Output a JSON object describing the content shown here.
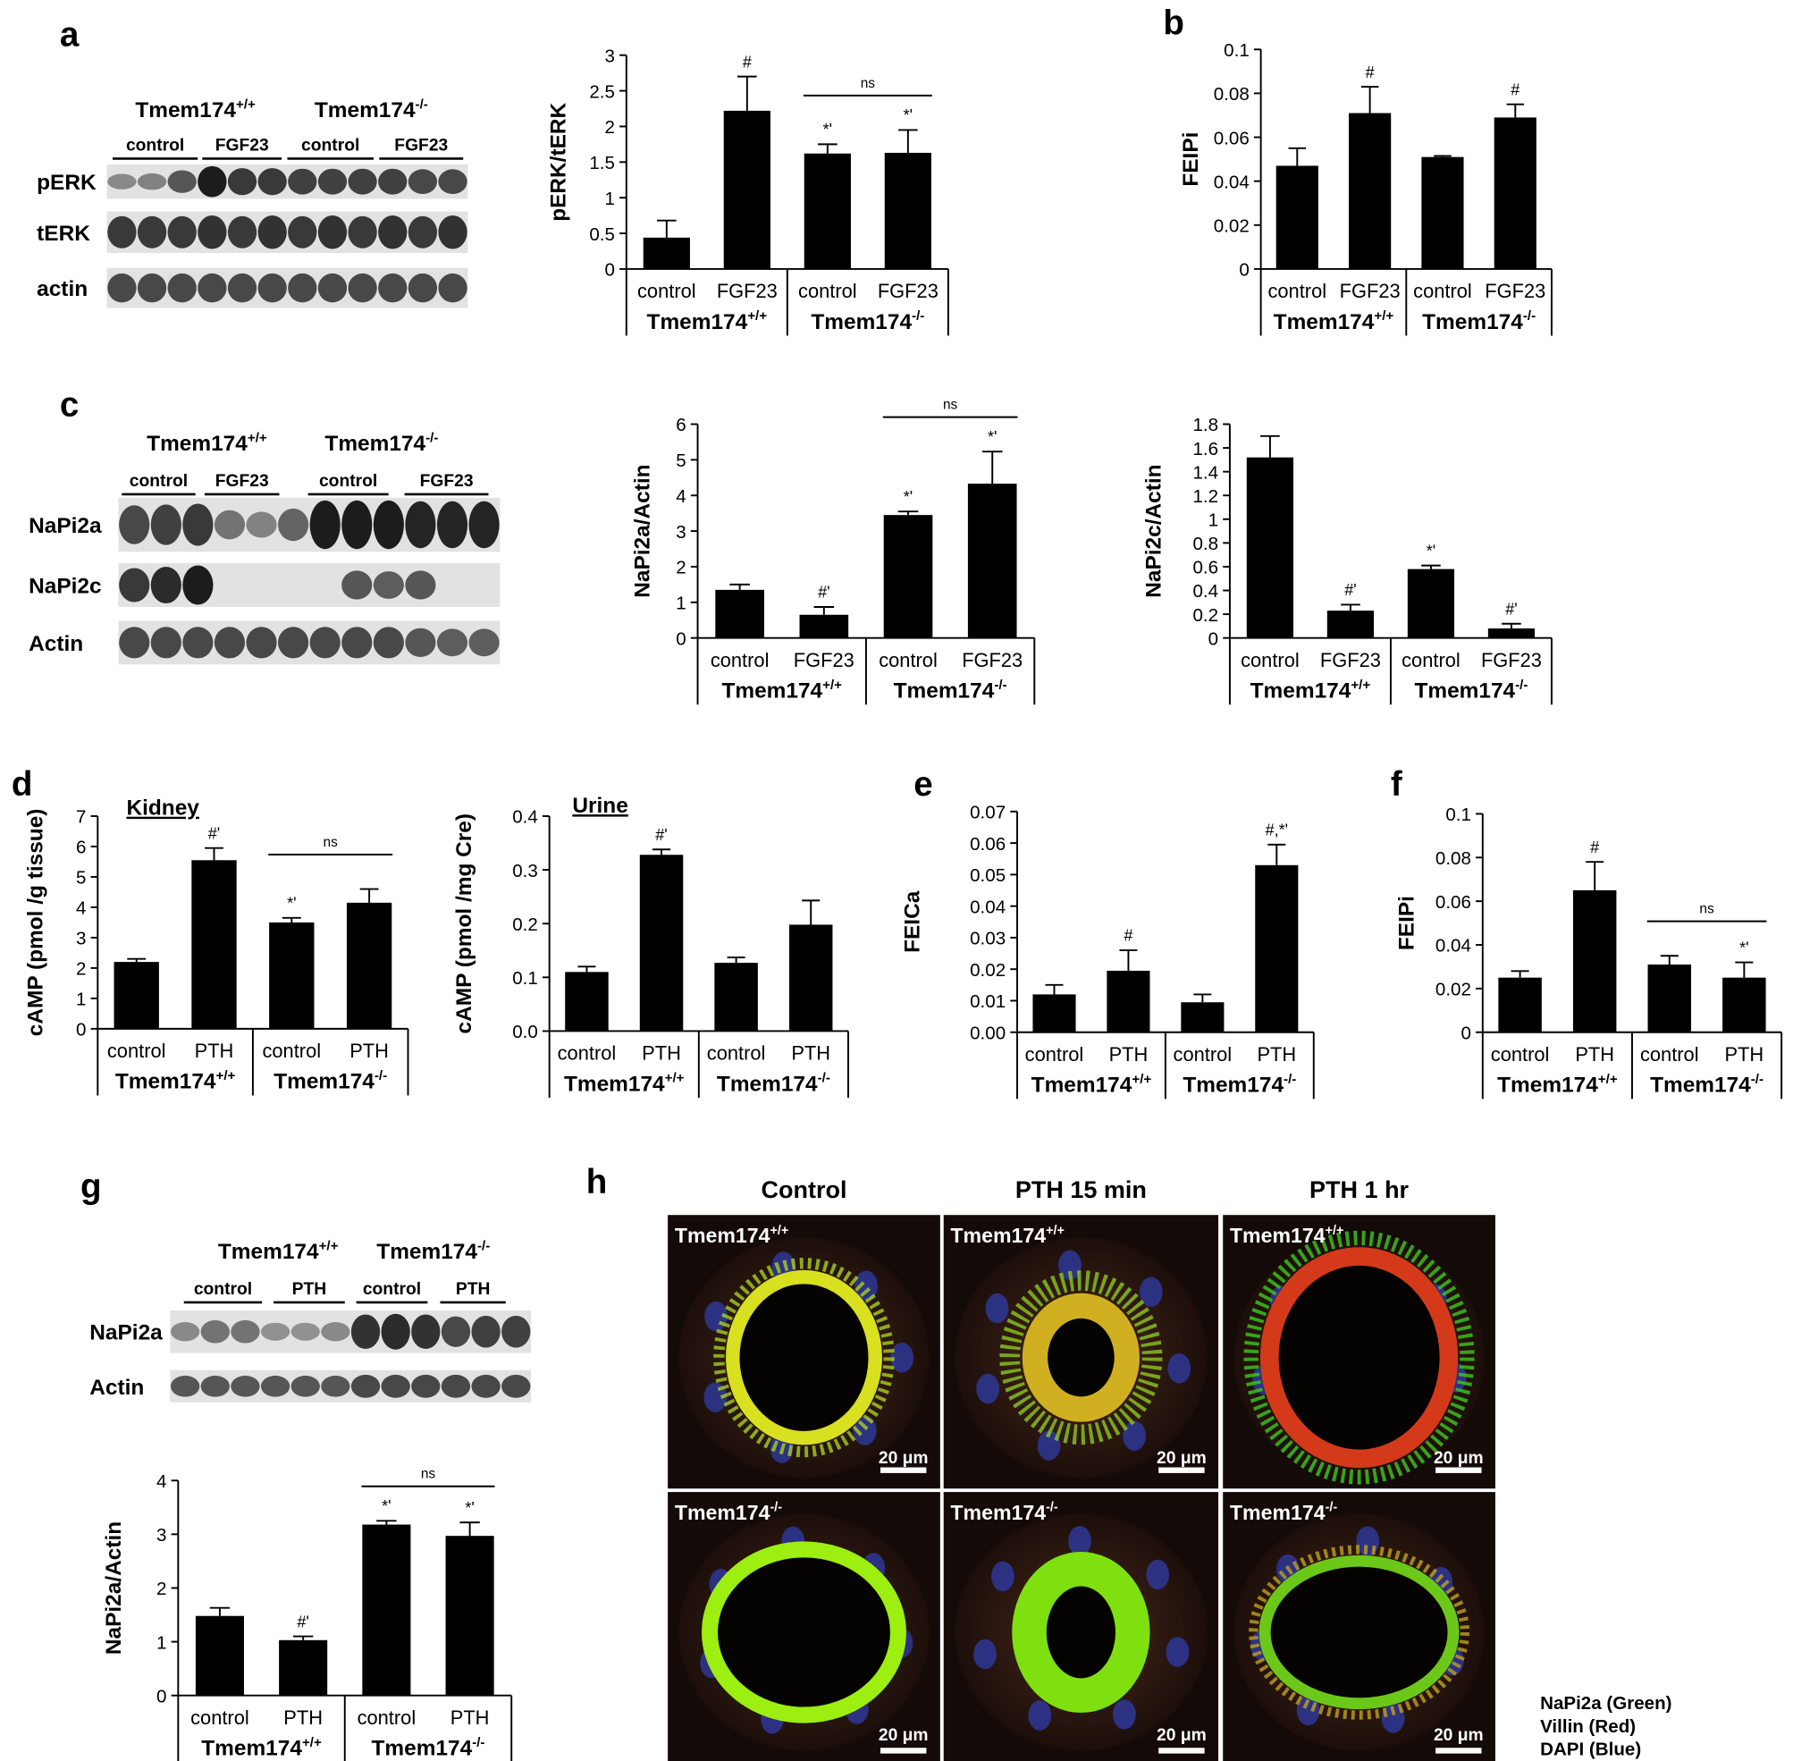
{
  "panel_labels": [
    "a",
    "b",
    "c",
    "d",
    "e",
    "f",
    "g",
    "h"
  ],
  "chart_data": [
    {
      "type": "bar",
      "y_label": "pERK/tERK",
      "categories": [
        "control",
        "FGF23",
        "control",
        "FGF23"
      ],
      "groups": [
        {
          "name": "Tmem174",
          "genotype": "+/+"
        },
        {
          "name": "Tmem174",
          "genotype": "-/-"
        }
      ],
      "values": [
        0.44,
        2.22,
        1.62,
        1.63
      ],
      "errors": [
        0.24,
        0.48,
        0.13,
        0.32
      ],
      "annotations": [
        null,
        "#",
        "*'",
        "*'"
      ],
      "bracket_label": "ns",
      "ylim": [
        0,
        3
      ],
      "yticks": [
        0,
        0.5,
        1,
        1.5,
        2,
        2.5,
        3
      ],
      "color": "#000000"
    },
    {
      "type": "bar",
      "y_label": "FEIPi",
      "categories": [
        "control",
        "FGF23",
        "control",
        "FGF23"
      ],
      "groups": [
        {
          "name": "Tmem174",
          "genotype": "+/+"
        },
        {
          "name": "Tmem174",
          "genotype": "-/-"
        }
      ],
      "values": [
        0.047,
        0.071,
        0.051,
        0.069
      ],
      "errors": [
        0.008,
        0.012,
        0.0005,
        0.006
      ],
      "annotations": [
        null,
        "#",
        null,
        "#"
      ],
      "ylim": [
        0,
        0.1
      ],
      "yticks": [
        0,
        0.02,
        0.04,
        0.06,
        0.08,
        0.1
      ],
      "color": "#000000"
    },
    {
      "type": "bar",
      "y_label": "NaPi2a/Actin",
      "categories": [
        "control",
        "FGF23",
        "control",
        "FGF23"
      ],
      "groups": [
        {
          "name": "Tmem174",
          "genotype": "+/+"
        },
        {
          "name": "Tmem174",
          "genotype": "-/-"
        }
      ],
      "values": [
        1.35,
        0.65,
        3.45,
        4.33
      ],
      "errors": [
        0.15,
        0.22,
        0.1,
        0.9
      ],
      "annotations": [
        null,
        "#'",
        "*'",
        "*'"
      ],
      "bracket_label": "ns",
      "ylim": [
        0,
        6
      ],
      "yticks": [
        0,
        1,
        2,
        3,
        4,
        5,
        6
      ],
      "color": "#000000"
    },
    {
      "type": "bar",
      "y_label": "NaPi2c/Actin",
      "categories": [
        "control",
        "FGF23",
        "control",
        "FGF23"
      ],
      "groups": [
        {
          "name": "Tmem174",
          "genotype": "+/+"
        },
        {
          "name": "Tmem174",
          "genotype": "-/-"
        }
      ],
      "values": [
        1.52,
        0.23,
        0.58,
        0.08
      ],
      "errors": [
        0.18,
        0.05,
        0.03,
        0.04
      ],
      "annotations": [
        null,
        "#'",
        "*'",
        "#'"
      ],
      "ylim": [
        0,
        1.8
      ],
      "yticks": [
        0,
        0.2,
        0.4,
        0.6,
        0.8,
        1,
        1.2,
        1.4,
        1.6,
        1.8
      ],
      "color": "#000000"
    },
    {
      "type": "bar",
      "subtitle": "Kidney",
      "y_label": "cAMP (pmol /g tissue)",
      "categories": [
        "control",
        "PTH",
        "control",
        "PTH"
      ],
      "groups": [
        {
          "name": "Tmem174",
          "genotype": "+/+"
        },
        {
          "name": "Tmem174",
          "genotype": "-/-"
        }
      ],
      "values": [
        2.2,
        5.55,
        3.5,
        4.15
      ],
      "errors": [
        0.1,
        0.4,
        0.15,
        0.45
      ],
      "annotations": [
        null,
        "#'",
        "*'",
        null
      ],
      "bracket_label": "ns",
      "ylim": [
        0,
        7
      ],
      "yticks": [
        0,
        1,
        2,
        3,
        4,
        5,
        6,
        7
      ],
      "color": "#000000"
    },
    {
      "type": "bar",
      "subtitle": "Urine",
      "y_label": "cAMP (pmol /mg Cre)",
      "categories": [
        "control",
        "PTH",
        "control",
        "PTH"
      ],
      "groups": [
        {
          "name": "Tmem174",
          "genotype": "+/+"
        },
        {
          "name": "Tmem174",
          "genotype": "-/-"
        }
      ],
      "values": [
        0.11,
        0.328,
        0.127,
        0.198
      ],
      "errors": [
        0.01,
        0.01,
        0.01,
        0.045
      ],
      "annotations": [
        null,
        "#'",
        null,
        null
      ],
      "ylim": [
        0,
        0.4
      ],
      "yticks": [
        {
          "value": 0,
          "label": "0.0"
        },
        0.1,
        0.2,
        0.3,
        0.4
      ],
      "color": "#000000"
    },
    {
      "type": "bar",
      "y_label": "FEICa",
      "categories": [
        "control",
        "PTH",
        "control",
        "PTH"
      ],
      "groups": [
        {
          "name": "Tmem174",
          "genotype": "+/+"
        },
        {
          "name": "Tmem174",
          "genotype": "-/-"
        }
      ],
      "values": [
        0.012,
        0.0195,
        0.0095,
        0.053
      ],
      "errors": [
        0.003,
        0.0065,
        0.0025,
        0.0065
      ],
      "annotations": [
        null,
        "#",
        null,
        "#,*'"
      ],
      "ylim": [
        0,
        0.07
      ],
      "yticks": [
        {
          "value": 0,
          "label": "0.00"
        },
        0.01,
        0.02,
        0.03,
        0.04,
        0.05,
        0.06,
        0.07
      ],
      "color": "#000000"
    },
    {
      "type": "bar",
      "y_label": "FEIPi",
      "categories": [
        "control",
        "PTH",
        "control",
        "PTH"
      ],
      "groups": [
        {
          "name": "Tmem174",
          "genotype": "+/+"
        },
        {
          "name": "Tmem174",
          "genotype": "-/-"
        }
      ],
      "values": [
        0.025,
        0.065,
        0.031,
        0.025
      ],
      "errors": [
        0.003,
        0.013,
        0.004,
        0.007
      ],
      "annotations": [
        null,
        "#",
        null,
        "*'"
      ],
      "bracket_label": "ns",
      "ylim": [
        0,
        0.1
      ],
      "yticks": [
        0,
        0.02,
        0.04,
        0.06,
        0.08,
        0.1
      ],
      "color": "#000000"
    },
    {
      "type": "bar",
      "y_label": "NaPi2a/Actin",
      "categories": [
        "control",
        "PTH",
        "control",
        "PTH"
      ],
      "groups": [
        {
          "name": "Tmem174",
          "genotype": "+/+"
        },
        {
          "name": "Tmem174",
          "genotype": "-/-"
        }
      ],
      "values": [
        1.48,
        1.03,
        3.18,
        2.97
      ],
      "errors": [
        0.15,
        0.07,
        0.07,
        0.25
      ],
      "annotations": [
        null,
        "#'",
        "*'",
        "*'"
      ],
      "bracket_label": "ns",
      "ylim": [
        0,
        4
      ],
      "yticks": [
        0,
        1,
        2,
        3,
        4
      ],
      "color": "#000000"
    }
  ],
  "blots": [
    {
      "groups": [
        {
          "name": "Tmem174",
          "genotype": "+/+"
        },
        {
          "name": "Tmem174",
          "genotype": "-/-"
        }
      ],
      "treatments": [
        "control",
        "FGF23",
        "control",
        "FGF23"
      ],
      "rows": [
        "pERK",
        "tERK",
        "actin"
      ]
    },
    {
      "groups": [
        {
          "name": "Tmem174",
          "genotype": "+/+"
        },
        {
          "name": "Tmem174",
          "genotype": "-/-"
        }
      ],
      "treatments": [
        "control",
        "FGF23",
        "control",
        "FGF23"
      ],
      "rows": [
        "NaPi2a",
        "NaPi2c",
        "Actin"
      ]
    },
    {
      "groups": [
        {
          "name": "Tmem174",
          "genotype": "+/+"
        },
        {
          "name": "Tmem174",
          "genotype": "-/-"
        }
      ],
      "treatments": [
        "control",
        "PTH",
        "control",
        "PTH"
      ],
      "rows": [
        "NaPi2a",
        "Actin"
      ]
    }
  ],
  "micrographs": {
    "columns": [
      "Control",
      "PTH 15 min",
      "PTH 1 hr"
    ],
    "rows": [
      {
        "name": "Tmem174",
        "genotype": "+/+"
      },
      {
        "name": "Tmem174",
        "genotype": "-/-"
      }
    ],
    "scale_bar": "20 μm",
    "legend": [
      "NaPi2a (Green)",
      "Villin (Red)",
      "DAPI (Blue)"
    ]
  }
}
